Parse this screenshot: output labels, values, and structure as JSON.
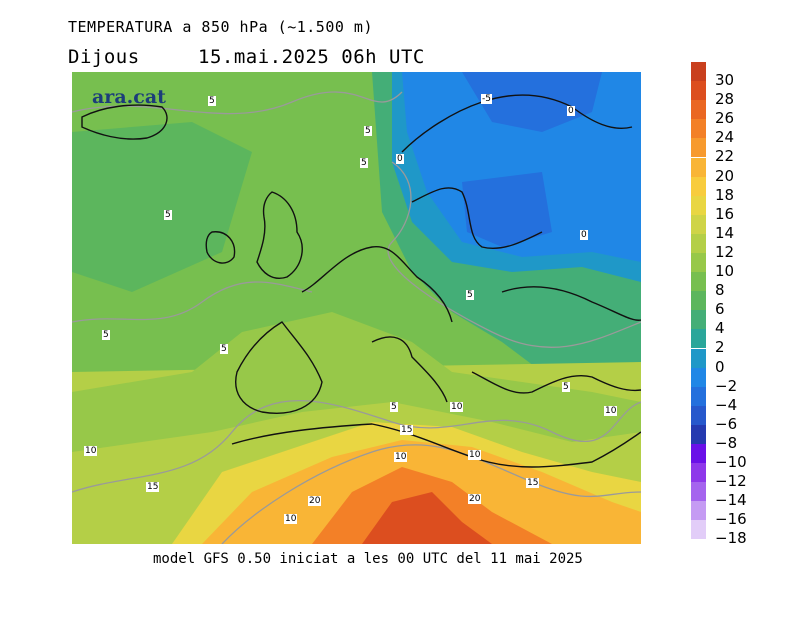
{
  "header": {
    "title": "TEMPERATURA a 850 hPa (~1.500 m)",
    "day": "Dijous",
    "datetime": "15.mai.2025 06h UTC"
  },
  "map": {
    "logo": "ara.cat",
    "contour_labels": [
      "5",
      "5",
      "5",
      "5",
      "0",
      "-5",
      "0",
      "0",
      "5",
      "5",
      "5",
      "5",
      "10",
      "10",
      "15",
      "20",
      "10",
      "5",
      "10",
      "15",
      "10",
      "10",
      "15",
      "20"
    ]
  },
  "legend": {
    "levels": [
      {
        "label": "30",
        "color": "#c9401e"
      },
      {
        "label": "28",
        "color": "#dc4e1f"
      },
      {
        "label": "26",
        "color": "#ea6722"
      },
      {
        "label": "24",
        "color": "#f38027"
      },
      {
        "label": "22",
        "color": "#f79a2e"
      },
      {
        "label": "20",
        "color": "#f9b536"
      },
      {
        "label": "18",
        "color": "#f8cc3d"
      },
      {
        "label": "16",
        "color": "#e9d642"
      },
      {
        "label": "14",
        "color": "#cfd447"
      },
      {
        "label": "12",
        "color": "#b4cf47"
      },
      {
        "label": "10",
        "color": "#97c849"
      },
      {
        "label": "8",
        "color": "#77bf4f"
      },
      {
        "label": "6",
        "color": "#5cb65d"
      },
      {
        "label": "4",
        "color": "#44ae77"
      },
      {
        "label": "2",
        "color": "#2aa69a"
      },
      {
        "label": "0",
        "color": "#1f98c8"
      },
      {
        "label": "−2",
        "color": "#2087e6"
      },
      {
        "label": "−4",
        "color": "#2470dd"
      },
      {
        "label": "−6",
        "color": "#2758cc"
      },
      {
        "label": "−8",
        "color": "#253ab0"
      },
      {
        "label": "−10",
        "color": "#6a10e8"
      },
      {
        "label": "−12",
        "color": "#8e38ea"
      },
      {
        "label": "−14",
        "color": "#a564ee"
      },
      {
        "label": "−16",
        "color": "#c59bf3"
      },
      {
        "label": "−18",
        "color": "#e2cdf8"
      }
    ]
  },
  "footer": {
    "text": "model GFS 0.50 iniciat a les 00 UTC del 11 mai 2025"
  }
}
